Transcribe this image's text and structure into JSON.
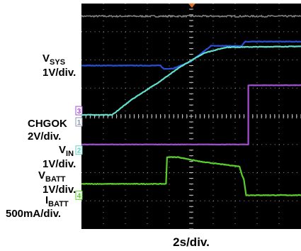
{
  "chart_data": {
    "type": "line",
    "xlabel": "2s/div.",
    "labels": {
      "vsys_name": "V",
      "vsys_sub": "SYS",
      "vsys_scale": "1V/div.",
      "chgok_name": "CHGOK",
      "chgok_scale": "2V/div.",
      "vin_name": "V",
      "vin_sub": "IN",
      "vin_scale": "1V/div.",
      "vbatt_name": "V",
      "vbatt_sub": "BATT",
      "vbatt_scale": "1V/div.",
      "ibatt_name": "I",
      "ibatt_sub": "BATT",
      "ibatt_scale": "500mA/div."
    },
    "grid": {
      "h_divisions": 8,
      "v_divisions": 10,
      "minor_ticks_per_div": 5
    },
    "x_range_div": [
      0,
      10
    ],
    "y_range_div": [
      0,
      8
    ],
    "markers": [
      {
        "name": "CH3",
        "text": "3",
        "level_div": 4.2,
        "color": "#a64ed8"
      },
      {
        "name": "CH1",
        "text": "1",
        "level_div": 3.8,
        "color": "#8a9bb0"
      },
      {
        "name": "CH2",
        "text": "2",
        "level_div": 2.8,
        "color": "#62d6c6"
      },
      {
        "name": "CH4",
        "text": "4",
        "level_div": 1.2,
        "color": "#5ad02a"
      }
    ],
    "series": [
      {
        "key": "ch2_top",
        "color": "#808080",
        "noise": 0.06,
        "points": [
          [
            0,
            7.55
          ],
          [
            10,
            7.55
          ]
        ]
      },
      {
        "key": "vsys",
        "color": "#2a4fd6",
        "noise": 0.02,
        "points": [
          [
            0,
            5.8
          ],
          [
            3.6,
            5.8
          ],
          [
            3.75,
            5.68
          ],
          [
            4.2,
            5.7
          ],
          [
            5,
            5.95
          ],
          [
            5.9,
            6.5
          ],
          [
            7.3,
            6.5
          ],
          [
            7.45,
            6.65
          ],
          [
            10,
            6.65
          ]
        ]
      },
      {
        "key": "vbatt",
        "color": "#5fe0cc",
        "noise": 0.02,
        "points": [
          [
            0,
            4.05
          ],
          [
            1.4,
            4.05
          ],
          [
            2.3,
            4.6
          ],
          [
            3.5,
            5.2
          ],
          [
            4.5,
            5.75
          ],
          [
            5.6,
            6.25
          ],
          [
            6.6,
            6.45
          ],
          [
            10,
            6.48
          ]
        ]
      },
      {
        "key": "chgok",
        "color": "#a64ed8",
        "noise": 0.01,
        "points": [
          [
            0,
            3.0
          ],
          [
            7.6,
            3.0
          ],
          [
            7.6,
            5.1
          ],
          [
            10,
            5.1
          ]
        ]
      },
      {
        "key": "ibatt",
        "color": "#5ad02a",
        "noise": 0.02,
        "points": [
          [
            0,
            1.6
          ],
          [
            3.85,
            1.6
          ],
          [
            3.9,
            2.55
          ],
          [
            4.4,
            2.55
          ],
          [
            5.5,
            2.38
          ],
          [
            7.2,
            2.22
          ],
          [
            7.32,
            1.9
          ],
          [
            7.4,
            1.75
          ],
          [
            7.5,
            1.2
          ],
          [
            10,
            1.2
          ]
        ]
      }
    ]
  }
}
